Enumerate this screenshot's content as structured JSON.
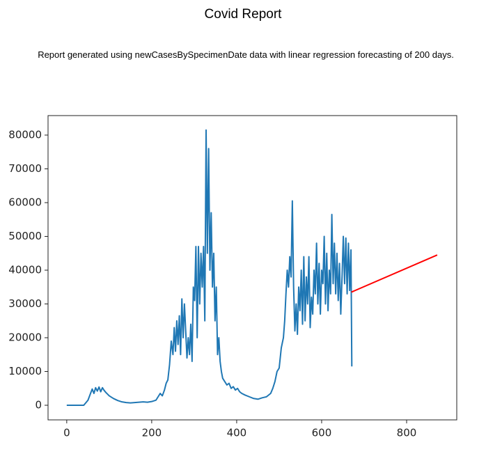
{
  "title": "Covid Report",
  "subtitle": "Report generated using newCasesBySpecimenDate data with linear regression forecasting of 200 days.",
  "chart_data": {
    "type": "line",
    "xlim": [
      -44,
      918
    ],
    "ylim": [
      -4330,
      85770
    ],
    "xticks": [
      0,
      200,
      400,
      600,
      800
    ],
    "yticks": [
      0,
      10000,
      20000,
      30000,
      40000,
      50000,
      60000,
      70000,
      80000
    ],
    "series": [
      {
        "color": "#1f77b4",
        "x": [
          0,
          40,
          50,
          56,
          60,
          64,
          68,
          72,
          76,
          80,
          84,
          88,
          92,
          100,
          110,
          120,
          130,
          140,
          150,
          160,
          170,
          180,
          190,
          200,
          210,
          215,
          220,
          225,
          230,
          234,
          238,
          242,
          246,
          250,
          253,
          256,
          259,
          262,
          265,
          268,
          271,
          274,
          277,
          280,
          283,
          286,
          289,
          292,
          295,
          298,
          301,
          304,
          307,
          310,
          313,
          316,
          319,
          322,
          325,
          328,
          331,
          334,
          337,
          340,
          343,
          346,
          349,
          352,
          355,
          358,
          361,
          364,
          367,
          372,
          377,
          382,
          387,
          392,
          397,
          402,
          407,
          412,
          420,
          430,
          440,
          450,
          460,
          470,
          480,
          485,
          490,
          495,
          500,
          505,
          510,
          513,
          516,
          519,
          522,
          525,
          528,
          531,
          534,
          537,
          540,
          543,
          546,
          549,
          552,
          555,
          558,
          561,
          564,
          567,
          570,
          573,
          576,
          579,
          582,
          585,
          588,
          591,
          594,
          597,
          600,
          603,
          606,
          609,
          612,
          615,
          618,
          621,
          624,
          627,
          630,
          633,
          636,
          639,
          642,
          645,
          648,
          651,
          654,
          657,
          660,
          663,
          666,
          669,
          671
        ],
        "values": [
          0,
          0,
          1500,
          3500,
          4800,
          3500,
          5200,
          4200,
          5400,
          4000,
          5200,
          4400,
          3800,
          2800,
          2000,
          1400,
          1000,
          800,
          700,
          800,
          900,
          1000,
          900,
          1100,
          1500,
          2500,
          3500,
          2800,
          4500,
          6500,
          7500,
          12000,
          19000,
          15000,
          23000,
          16000,
          25000,
          18000,
          26500,
          15000,
          31500,
          20000,
          30000,
          22000,
          14000,
          20000,
          15000,
          24000,
          13000,
          35000,
          31000,
          47000,
          20000,
          47000,
          30000,
          45000,
          35000,
          47000,
          25000,
          81500,
          45000,
          76000,
          40000,
          57000,
          35000,
          45000,
          25000,
          35000,
          15000,
          20000,
          13000,
          10000,
          8000,
          7000,
          6000,
          6500,
          5000,
          5500,
          4500,
          5000,
          4000,
          3500,
          3000,
          2500,
          2000,
          1800,
          2200,
          2500,
          3500,
          5000,
          7000,
          10000,
          11000,
          17000,
          20000,
          25000,
          33000,
          40000,
          35000,
          44000,
          38000,
          60500,
          35000,
          22000,
          30000,
          21000,
          35000,
          28000,
          40000,
          24000,
          44000,
          25000,
          38000,
          30000,
          44000,
          23000,
          32000,
          27000,
          40000,
          33000,
          48000,
          30000,
          42000,
          27000,
          40000,
          36000,
          50000,
          30000,
          45000,
          28000,
          40000,
          33000,
          56500,
          36000,
          48000,
          33000,
          45000,
          31000,
          42000,
          27000,
          38000,
          50000,
          36000,
          49500,
          33000,
          48000,
          34000,
          46000,
          11500
        ]
      },
      {
        "color": "#ff0000",
        "x": [
          670,
          872
        ],
        "values": [
          33500,
          44500
        ]
      }
    ]
  }
}
